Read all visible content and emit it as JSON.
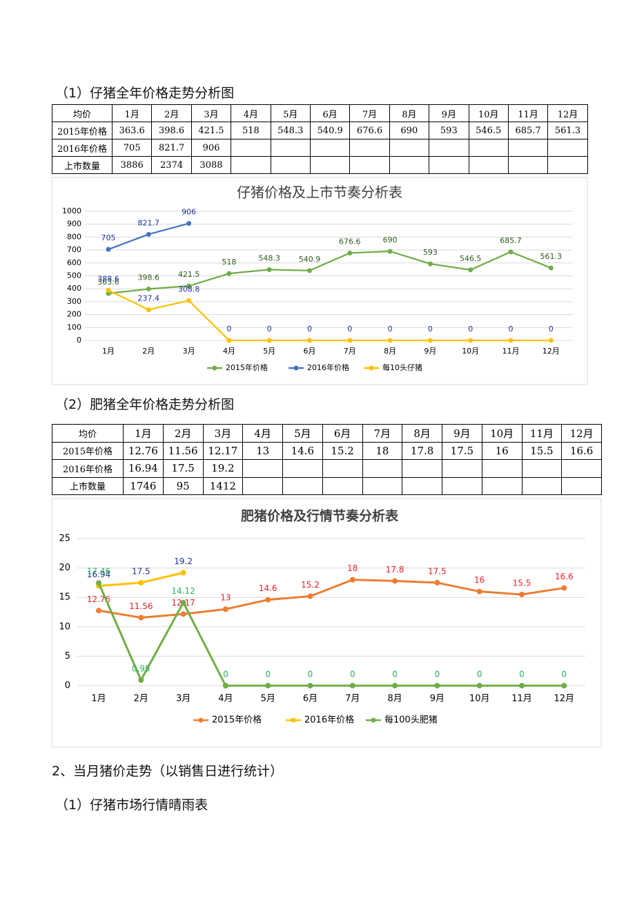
{
  "headings": [
    "（1）仔猪全年价格走势分析图",
    "（2）肥猪全年价格走势分析图",
    "2、当月猪价走势（以销售日进行统计）",
    "（1）仔猪市场行情晴雨表"
  ],
  "table1": {
    "header": [
      "均价",
      "1月",
      "2月",
      "3月",
      "4月",
      "5月",
      "6月",
      "7月",
      "8月",
      "9月",
      "10月",
      "11月",
      "12月"
    ],
    "rows": [
      [
        "2015年价格",
        "363.6",
        "398.6",
        "421.5",
        "518",
        "548.3",
        "540.9",
        "676.6",
        "690",
        "593",
        "546.5",
        "685.7",
        "561.3"
      ],
      [
        "2016年价格",
        "705",
        "821.7",
        "906",
        null,
        null,
        null,
        null,
        null,
        null,
        null,
        null,
        null
      ],
      [
        "上市数量",
        "3886",
        "2374",
        "3088",
        null,
        null,
        null,
        null,
        null,
        null,
        null,
        null,
        null
      ]
    ]
  },
  "table2": {
    "header": [
      "均价",
      "1月",
      "2月",
      "3月",
      "4月",
      "5月",
      "6月",
      "7月",
      "8月",
      "9月",
      "10月",
      "11月",
      "12月"
    ],
    "rows": [
      [
        "2015年价格",
        "12.76",
        "11.56",
        "12.17",
        "13",
        "14.6",
        "15.2",
        "18",
        "17.8",
        "17.5",
        "16",
        "15.5",
        "16.6"
      ],
      [
        "2016年价格",
        "16.94",
        "17.5",
        "19.2",
        null,
        null,
        null,
        null,
        null,
        null,
        null,
        null,
        null
      ],
      [
        "上市数量",
        "1746",
        "95",
        "1412",
        null,
        null,
        null,
        null,
        null,
        null,
        null,
        null,
        null
      ]
    ]
  },
  "chart_data": [
    {
      "type": "line",
      "title": "仔猪价格及上市节奏分析表",
      "categories": [
        "1月",
        "2月",
        "3月",
        "4月",
        "5月",
        "6月",
        "7月",
        "8月",
        "9月",
        "10月",
        "11月",
        "12月"
      ],
      "ylim": [
        0,
        1000
      ],
      "yticks": [
        0,
        100,
        200,
        300,
        400,
        500,
        600,
        700,
        800,
        900,
        1000
      ],
      "grid": true,
      "legend": "bottom",
      "series": [
        {
          "name": "2015年价格",
          "color": "#70ad47",
          "label_color": "#2e5a1c",
          "values": [
            363.6,
            398.6,
            421.5,
            518,
            548.3,
            540.9,
            676.6,
            690,
            593,
            546.5,
            685.7,
            561.3
          ]
        },
        {
          "name": "2016年价格",
          "color": "#4472c4",
          "label_color": "#1f2f9f",
          "values": [
            705,
            821.7,
            906,
            null,
            null,
            null,
            null,
            null,
            null,
            null,
            null,
            null
          ]
        },
        {
          "name": "每10头仔猪",
          "color": "#ffc000",
          "label_color": "#1f2f9f",
          "values": [
            388.6,
            237.4,
            308.8,
            0,
            0,
            0,
            0,
            0,
            0,
            0,
            0,
            0
          ]
        }
      ]
    },
    {
      "type": "line",
      "title": "肥猪价格及行情节奏分析表",
      "categories": [
        "1月",
        "2月",
        "3月",
        "4月",
        "5月",
        "6月",
        "7月",
        "8月",
        "9月",
        "10月",
        "11月",
        "12月"
      ],
      "ylim": [
        0,
        25
      ],
      "yticks": [
        0,
        5,
        10,
        15,
        20,
        25
      ],
      "grid": true,
      "legend": "bottom",
      "series": [
        {
          "name": "2015年价格",
          "color": "#ed7d31",
          "label_color": "#e8202a",
          "values": [
            12.76,
            11.56,
            12.17,
            13,
            14.6,
            15.2,
            18,
            17.8,
            17.5,
            16,
            15.5,
            16.6
          ]
        },
        {
          "name": "2016年价格",
          "color": "#ffc000",
          "label_color": "#1f2f9f",
          "values": [
            16.94,
            17.5,
            19.2,
            null,
            null,
            null,
            null,
            null,
            null,
            null,
            null,
            null
          ]
        },
        {
          "name": "每100头肥猪",
          "color": "#70ad47",
          "label_color": "#22b05a",
          "values": [
            17.46,
            0.95,
            14.12,
            0,
            0,
            0,
            0,
            0,
            0,
            0,
            0,
            0
          ]
        }
      ]
    }
  ]
}
